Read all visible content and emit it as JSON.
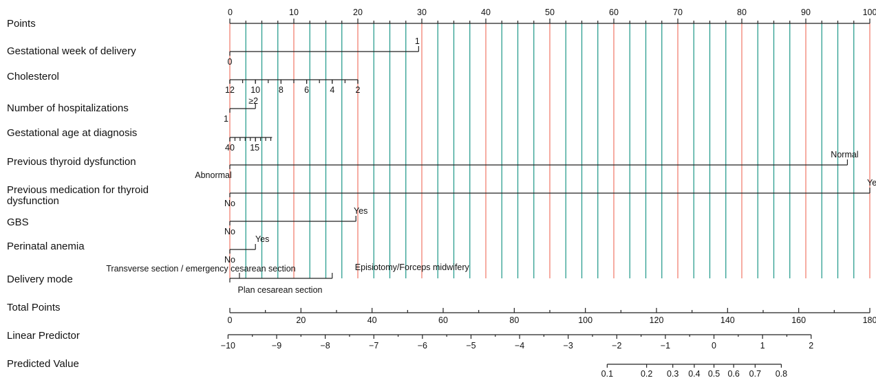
{
  "chart_data": {
    "type": "nomogram",
    "points_axis": {
      "label": "Points",
      "range": [
        0,
        100
      ],
      "major_ticks": [
        0,
        10,
        20,
        30,
        40,
        50,
        60,
        70,
        80,
        90,
        100
      ],
      "minor_step": 2.5
    },
    "variables": [
      {
        "label": "Gestational week of delivery",
        "ticks": [
          {
            "text": "0",
            "points": 0,
            "pos": "below"
          },
          {
            "text": "1",
            "points": 29.5,
            "pos": "above"
          }
        ]
      },
      {
        "label": "Cholesterol",
        "ticks": [
          {
            "text": "12",
            "points": 0,
            "pos": "below"
          },
          {
            "text": "10",
            "points": 4,
            "pos": "below"
          },
          {
            "text": "8",
            "points": 8,
            "pos": "below"
          },
          {
            "text": "6",
            "points": 12,
            "pos": "below"
          },
          {
            "text": "4",
            "points": 16,
            "pos": "below"
          },
          {
            "text": "2",
            "points": 20,
            "pos": "below"
          }
        ],
        "minor_step_points": 2
      },
      {
        "label": "Number of hospitalizations",
        "ticks": [
          {
            "text": "1",
            "points": -0.6,
            "pos": "below"
          },
          {
            "text": "≥2",
            "points": 4,
            "pos": "above"
          }
        ]
      },
      {
        "label": "Gestational age at diagnosis",
        "ticks": [
          {
            "text": "40",
            "points": 0,
            "pos": "below"
          },
          {
            "text": "15",
            "points": 4,
            "pos": "below"
          }
        ],
        "minor_step_points": 0.8,
        "end_points": 6.6
      },
      {
        "label": "Previous thyroid dysfunction",
        "ticks": [
          {
            "text": "Abnormal",
            "points": 0,
            "pos": "below"
          },
          {
            "text": "Normal",
            "points": 96.5,
            "pos": "above"
          }
        ]
      },
      {
        "label": "Previous medication for thyroid dysfunction",
        "ticks": [
          {
            "text": "No",
            "points": 0,
            "pos": "below"
          },
          {
            "text": "Yes",
            "points": 100,
            "pos": "above"
          }
        ]
      },
      {
        "label": "GBS",
        "ticks": [
          {
            "text": "No",
            "points": 0,
            "pos": "below"
          },
          {
            "text": "Yes",
            "points": 19.7,
            "pos": "above"
          }
        ]
      },
      {
        "label": "Perinatal anemia",
        "ticks": [
          {
            "text": "No",
            "points": 0,
            "pos": "below"
          },
          {
            "text": "Yes",
            "points": 4,
            "pos": "above"
          }
        ]
      },
      {
        "label": "Delivery mode",
        "ticks": [
          {
            "text": "Plan cesarean section",
            "points": 0,
            "pos": "below"
          },
          {
            "text": "Transverse section / emergency cesarean section",
            "points": 1.5,
            "pos": "above"
          },
          {
            "text": "Episiotomy/Forceps midwifery",
            "points": 16,
            "pos": "above"
          }
        ]
      }
    ],
    "total_points": {
      "label": "Total Points",
      "range": [
        0,
        180
      ],
      "ticks": [
        0,
        20,
        40,
        60,
        80,
        100,
        120,
        140,
        160,
        180
      ],
      "minor_step": 10
    },
    "linear_predictor": {
      "label": "Linear Predictor",
      "ticks": [
        {
          "text": "−10",
          "value": -10
        },
        {
          "text": "−9",
          "value": -9
        },
        {
          "text": "−8",
          "value": -8
        },
        {
          "text": "−7",
          "value": -7
        },
        {
          "text": "−6",
          "value": -6
        },
        {
          "text": "−5",
          "value": -5
        },
        {
          "text": "−4",
          "value": -4
        },
        {
          "text": "−3",
          "value": -3
        },
        {
          "text": "−2",
          "value": -2
        },
        {
          "text": "−1",
          "value": -1
        },
        {
          "text": "0",
          "value": 0
        },
        {
          "text": "1",
          "value": 1
        },
        {
          "text": "2",
          "value": 2
        }
      ],
      "total_points_at": [
        -0.5,
        163.5
      ]
    },
    "predicted_value": {
      "label": "Predicted Value",
      "ticks": [
        "0.1",
        "0.2",
        "0.3",
        "0.4",
        "0.5",
        "0.6",
        "0.7",
        "0.8"
      ]
    },
    "colors": {
      "major_line": "#f08070",
      "minor_line": "#2a9d8f",
      "axis": "#222222"
    }
  }
}
